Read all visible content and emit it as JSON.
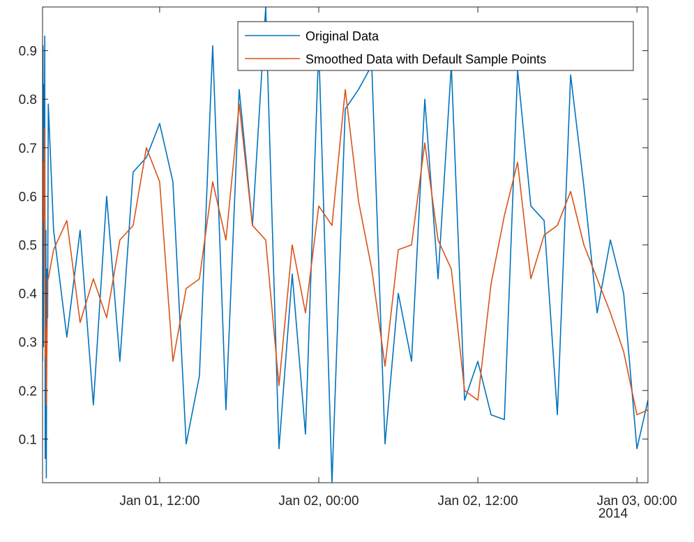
{
  "chart_data": {
    "type": "line",
    "xaxis": {
      "kind": "datetime",
      "range": [
        "2014-01-01T03:10",
        "2014-01-03T00:50"
      ],
      "ticks": [
        {
          "x": "2014-01-01T12:00",
          "label": "Jan 01, 12:00"
        },
        {
          "x": "2014-01-02T00:00",
          "label": "Jan 02, 00:00"
        },
        {
          "x": "2014-01-02T12:00",
          "label": "Jan 02, 12:00"
        },
        {
          "x": "2014-01-03T00:00",
          "label": "Jan 03, 00:00"
        }
      ],
      "secondary_label": "2014"
    },
    "yaxis": {
      "range": [
        0.01,
        0.99
      ],
      "ticks": [
        0.1,
        0.2,
        0.3,
        0.4,
        0.5,
        0.6,
        0.7,
        0.8,
        0.9
      ],
      "tick_labels": [
        "0.1",
        "0.2",
        "0.3",
        "0.4",
        "0.5",
        "0.6",
        "0.7",
        "0.8",
        "0.9"
      ]
    },
    "grid": false,
    "legend": {
      "placement": "top-right"
    },
    "series": [
      {
        "name": "Original Data",
        "color": "#0072BD",
        "x": [
          "2014-01-01T03:10",
          "2014-01-01T03:12",
          "2014-01-01T03:14",
          "2014-01-01T03:16",
          "2014-01-01T03:18",
          "2014-01-01T03:20",
          "2014-01-01T03:22",
          "2014-01-01T03:25",
          "2014-01-01T03:27",
          "2014-01-01T03:30",
          "2014-01-01T03:33",
          "2014-01-01T03:36",
          "2014-01-01T04:00",
          "2014-01-01T05:00",
          "2014-01-01T06:00",
          "2014-01-01T07:00",
          "2014-01-01T08:00",
          "2014-01-01T09:00",
          "2014-01-01T10:00",
          "2014-01-01T11:00",
          "2014-01-01T12:00",
          "2014-01-01T13:00",
          "2014-01-01T14:00",
          "2014-01-01T15:00",
          "2014-01-01T16:00",
          "2014-01-01T17:00",
          "2014-01-01T18:00",
          "2014-01-01T19:00",
          "2014-01-01T20:00",
          "2014-01-01T21:00",
          "2014-01-01T22:00",
          "2014-01-01T23:00",
          "2014-01-02T00:00",
          "2014-01-02T01:00",
          "2014-01-02T02:00",
          "2014-01-02T03:00",
          "2014-01-02T04:00",
          "2014-01-02T05:00",
          "2014-01-02T06:00",
          "2014-01-02T07:00",
          "2014-01-02T08:00",
          "2014-01-02T09:00",
          "2014-01-02T10:00",
          "2014-01-02T11:00",
          "2014-01-02T12:00",
          "2014-01-02T13:00",
          "2014-01-02T14:00",
          "2014-01-02T15:00",
          "2014-01-02T16:00",
          "2014-01-02T17:00",
          "2014-01-02T18:00",
          "2014-01-02T19:00",
          "2014-01-02T20:00",
          "2014-01-02T21:00",
          "2014-01-02T22:00",
          "2014-01-02T23:00",
          "2014-01-03T00:00",
          "2014-01-03T00:50"
        ],
        "y": [
          0.26,
          0.91,
          0.29,
          0.83,
          0.63,
          0.93,
          0.06,
          0.53,
          0.02,
          0.45,
          0.35,
          0.79,
          0.53,
          0.31,
          0.53,
          0.17,
          0.6,
          0.26,
          0.65,
          0.68,
          0.75,
          0.63,
          0.09,
          0.23,
          0.91,
          0.16,
          0.82,
          0.54,
          0.99,
          0.08,
          0.44,
          0.11,
          0.91,
          0.01,
          0.78,
          0.82,
          0.87,
          0.09,
          0.4,
          0.26,
          0.8,
          0.43,
          0.87,
          0.18,
          0.26,
          0.15,
          0.14,
          0.86,
          0.58,
          0.55,
          0.15,
          0.85,
          0.62,
          0.36,
          0.51,
          0.4,
          0.08,
          0.18
        ]
      },
      {
        "name": "Smoothed Data with Default Sample Points",
        "color": "#D95319",
        "x": [
          "2014-01-01T03:10",
          "2014-01-01T03:12",
          "2014-01-01T03:14",
          "2014-01-01T03:16",
          "2014-01-01T03:18",
          "2014-01-01T03:20",
          "2014-01-01T03:22",
          "2014-01-01T03:25",
          "2014-01-01T03:27",
          "2014-01-01T03:30",
          "2014-01-01T03:33",
          "2014-01-01T03:36",
          "2014-01-01T04:00",
          "2014-01-01T05:00",
          "2014-01-01T06:00",
          "2014-01-01T07:00",
          "2014-01-01T08:00",
          "2014-01-01T09:00",
          "2014-01-01T10:00",
          "2014-01-01T11:00",
          "2014-01-01T12:00",
          "2014-01-01T13:00",
          "2014-01-01T14:00",
          "2014-01-01T15:00",
          "2014-01-01T16:00",
          "2014-01-01T17:00",
          "2014-01-01T18:00",
          "2014-01-01T19:00",
          "2014-01-01T20:00",
          "2014-01-01T21:00",
          "2014-01-01T22:00",
          "2014-01-01T23:00",
          "2014-01-02T00:00",
          "2014-01-02T01:00",
          "2014-01-02T02:00",
          "2014-01-02T03:00",
          "2014-01-02T04:00",
          "2014-01-02T05:00",
          "2014-01-02T06:00",
          "2014-01-02T07:00",
          "2014-01-02T08:00",
          "2014-01-02T09:00",
          "2014-01-02T10:00",
          "2014-01-02T11:00",
          "2014-01-02T12:00",
          "2014-01-02T13:00",
          "2014-01-02T14:00",
          "2014-01-02T15:00",
          "2014-01-02T16:00",
          "2014-01-02T17:00",
          "2014-01-02T18:00",
          "2014-01-02T19:00",
          "2014-01-02T20:00",
          "2014-01-02T21:00",
          "2014-01-02T22:00",
          "2014-01-02T23:00",
          "2014-01-03T00:00",
          "2014-01-03T00:50"
        ],
        "y": [
          0.45,
          0.62,
          0.67,
          0.55,
          0.74,
          0.65,
          0.27,
          0.33,
          0.17,
          0.3,
          0.43,
          0.43,
          0.49,
          0.55,
          0.34,
          0.43,
          0.35,
          0.51,
          0.54,
          0.7,
          0.63,
          0.26,
          0.41,
          0.43,
          0.63,
          0.51,
          0.79,
          0.54,
          0.51,
          0.21,
          0.5,
          0.36,
          0.58,
          0.54,
          0.82,
          0.59,
          0.45,
          0.25,
          0.49,
          0.5,
          0.71,
          0.51,
          0.45,
          0.2,
          0.18,
          0.42,
          0.56,
          0.67,
          0.43,
          0.52,
          0.54,
          0.61,
          0.5,
          0.43,
          0.36,
          0.28,
          0.15,
          0.16
        ]
      }
    ]
  }
}
